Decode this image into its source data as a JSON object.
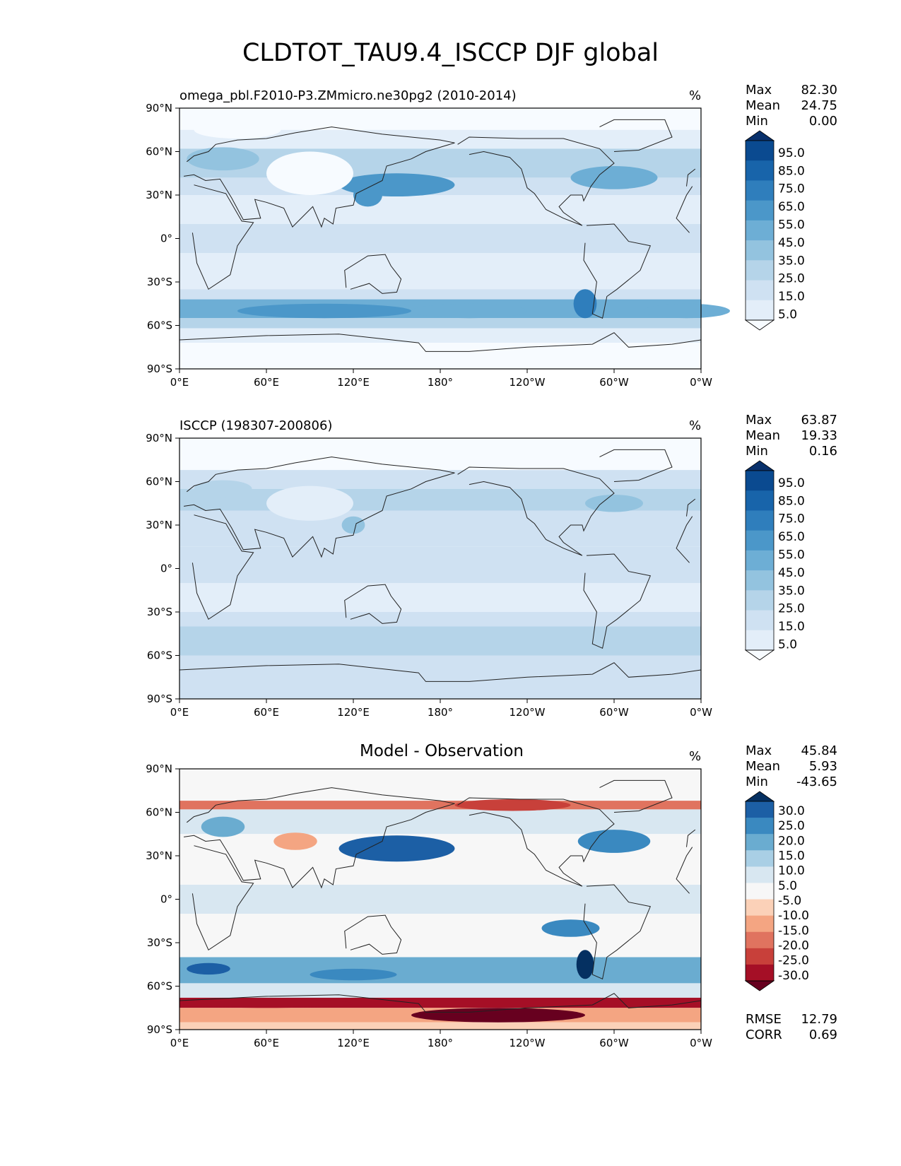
{
  "title": "CLDTOT_TAU9.4_ISCCP DJF global",
  "lon_ticks": [
    "0°E",
    "60°E",
    "120°E",
    "180°",
    "120°W",
    "60°W",
    "0°W"
  ],
  "lat_ticks": [
    "90°N",
    "60°N",
    "30°N",
    "0°",
    "30°S",
    "60°S",
    "90°S"
  ],
  "seq_levels": [
    "95.0",
    "85.0",
    "75.0",
    "65.0",
    "55.0",
    "45.0",
    "35.0",
    "25.0",
    "15.0",
    "5.0"
  ],
  "div_levels": [
    "30.0",
    "25.0",
    "20.0",
    "15.0",
    "10.0",
    "5.0",
    "-5.0",
    "-10.0",
    "-15.0",
    "-20.0",
    "-25.0",
    "-30.0"
  ],
  "colors": {
    "seq": [
      "#f7fbff",
      "#e3eef9",
      "#cfe1f2",
      "#b5d4e9",
      "#93c3df",
      "#6daed5",
      "#4b97c9",
      "#2f7ebc",
      "#1864aa",
      "#0a4a90",
      "#08306b"
    ],
    "div": [
      "#67001f",
      "#a50f26",
      "#c8403a",
      "#e0735f",
      "#f4a582",
      "#fbd1b8",
      "#f7f7f7",
      "#d8e7f1",
      "#a9cfe5",
      "#6aacd0",
      "#3a89c0",
      "#1c5fa5",
      "#053061"
    ]
  },
  "panels": [
    {
      "id": "test",
      "title": "omega_pbl.F2010-P3.ZMmicro.ne30pg2 (2010-2014)",
      "units": "%",
      "stats": {
        "max_label": "Max",
        "max": "82.30",
        "mean_label": "Mean",
        "mean": "24.75",
        "min_label": "Min",
        "min": "0.00"
      }
    },
    {
      "id": "reference",
      "title": "ISCCP (198307-200806)",
      "units": "%",
      "stats": {
        "max_label": "Max",
        "max": "63.87",
        "mean_label": "Mean",
        "mean": "19.33",
        "min_label": "Min",
        "min": "0.16"
      }
    },
    {
      "id": "difference",
      "title": "Model - Observation",
      "units": "%",
      "stats": {
        "max_label": "Max",
        "max": "45.84",
        "mean_label": "Mean",
        "mean": "5.93",
        "min_label": "Min",
        "min": "-43.65"
      }
    }
  ],
  "metrics": {
    "rmse_label": "RMSE",
    "rmse": "12.79",
    "corr_label": "CORR",
    "corr": "0.69"
  }
}
